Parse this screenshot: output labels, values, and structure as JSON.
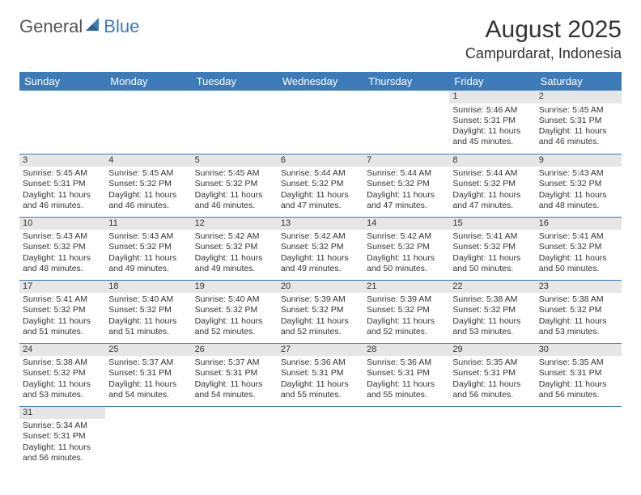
{
  "logo": {
    "text1": "General",
    "text2": "Blue"
  },
  "title": "August 2025",
  "location": "Campurdarat, Indonesia",
  "colors": {
    "header_bg": "#3d7bb8",
    "header_text": "#ffffff",
    "daynum_bg": "#e6e6e6",
    "row_border": "#3d7bb8",
    "body_text": "#333333",
    "logo_gray": "#555555",
    "logo_blue": "#3d7bb8"
  },
  "weekdays": [
    "Sunday",
    "Monday",
    "Tuesday",
    "Wednesday",
    "Thursday",
    "Friday",
    "Saturday"
  ],
  "weeks": [
    [
      null,
      null,
      null,
      null,
      null,
      {
        "n": "1",
        "sr": "5:46 AM",
        "ss": "5:31 PM",
        "dl": "11 hours and 45 minutes."
      },
      {
        "n": "2",
        "sr": "5:45 AM",
        "ss": "5:31 PM",
        "dl": "11 hours and 46 minutes."
      }
    ],
    [
      {
        "n": "3",
        "sr": "5:45 AM",
        "ss": "5:31 PM",
        "dl": "11 hours and 46 minutes."
      },
      {
        "n": "4",
        "sr": "5:45 AM",
        "ss": "5:32 PM",
        "dl": "11 hours and 46 minutes."
      },
      {
        "n": "5",
        "sr": "5:45 AM",
        "ss": "5:32 PM",
        "dl": "11 hours and 46 minutes."
      },
      {
        "n": "6",
        "sr": "5:44 AM",
        "ss": "5:32 PM",
        "dl": "11 hours and 47 minutes."
      },
      {
        "n": "7",
        "sr": "5:44 AM",
        "ss": "5:32 PM",
        "dl": "11 hours and 47 minutes."
      },
      {
        "n": "8",
        "sr": "5:44 AM",
        "ss": "5:32 PM",
        "dl": "11 hours and 47 minutes."
      },
      {
        "n": "9",
        "sr": "5:43 AM",
        "ss": "5:32 PM",
        "dl": "11 hours and 48 minutes."
      }
    ],
    [
      {
        "n": "10",
        "sr": "5:43 AM",
        "ss": "5:32 PM",
        "dl": "11 hours and 48 minutes."
      },
      {
        "n": "11",
        "sr": "5:43 AM",
        "ss": "5:32 PM",
        "dl": "11 hours and 49 minutes."
      },
      {
        "n": "12",
        "sr": "5:42 AM",
        "ss": "5:32 PM",
        "dl": "11 hours and 49 minutes."
      },
      {
        "n": "13",
        "sr": "5:42 AM",
        "ss": "5:32 PM",
        "dl": "11 hours and 49 minutes."
      },
      {
        "n": "14",
        "sr": "5:42 AM",
        "ss": "5:32 PM",
        "dl": "11 hours and 50 minutes."
      },
      {
        "n": "15",
        "sr": "5:41 AM",
        "ss": "5:32 PM",
        "dl": "11 hours and 50 minutes."
      },
      {
        "n": "16",
        "sr": "5:41 AM",
        "ss": "5:32 PM",
        "dl": "11 hours and 50 minutes."
      }
    ],
    [
      {
        "n": "17",
        "sr": "5:41 AM",
        "ss": "5:32 PM",
        "dl": "11 hours and 51 minutes."
      },
      {
        "n": "18",
        "sr": "5:40 AM",
        "ss": "5:32 PM",
        "dl": "11 hours and 51 minutes."
      },
      {
        "n": "19",
        "sr": "5:40 AM",
        "ss": "5:32 PM",
        "dl": "11 hours and 52 minutes."
      },
      {
        "n": "20",
        "sr": "5:39 AM",
        "ss": "5:32 PM",
        "dl": "11 hours and 52 minutes."
      },
      {
        "n": "21",
        "sr": "5:39 AM",
        "ss": "5:32 PM",
        "dl": "11 hours and 52 minutes."
      },
      {
        "n": "22",
        "sr": "5:38 AM",
        "ss": "5:32 PM",
        "dl": "11 hours and 53 minutes."
      },
      {
        "n": "23",
        "sr": "5:38 AM",
        "ss": "5:32 PM",
        "dl": "11 hours and 53 minutes."
      }
    ],
    [
      {
        "n": "24",
        "sr": "5:38 AM",
        "ss": "5:32 PM",
        "dl": "11 hours and 53 minutes."
      },
      {
        "n": "25",
        "sr": "5:37 AM",
        "ss": "5:31 PM",
        "dl": "11 hours and 54 minutes."
      },
      {
        "n": "26",
        "sr": "5:37 AM",
        "ss": "5:31 PM",
        "dl": "11 hours and 54 minutes."
      },
      {
        "n": "27",
        "sr": "5:36 AM",
        "ss": "5:31 PM",
        "dl": "11 hours and 55 minutes."
      },
      {
        "n": "28",
        "sr": "5:36 AM",
        "ss": "5:31 PM",
        "dl": "11 hours and 55 minutes."
      },
      {
        "n": "29",
        "sr": "5:35 AM",
        "ss": "5:31 PM",
        "dl": "11 hours and 56 minutes."
      },
      {
        "n": "30",
        "sr": "5:35 AM",
        "ss": "5:31 PM",
        "dl": "11 hours and 56 minutes."
      }
    ],
    [
      {
        "n": "31",
        "sr": "5:34 AM",
        "ss": "5:31 PM",
        "dl": "11 hours and 56 minutes."
      },
      null,
      null,
      null,
      null,
      null,
      null
    ]
  ],
  "labels": {
    "sunrise": "Sunrise: ",
    "sunset": "Sunset: ",
    "daylight": "Daylight: "
  }
}
